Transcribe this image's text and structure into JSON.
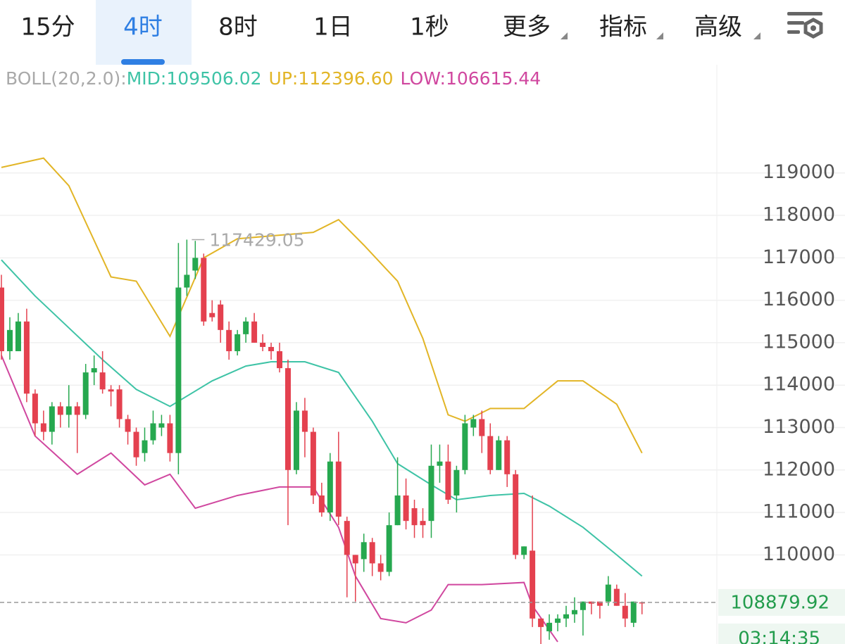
{
  "tabs": {
    "items": [
      "15分",
      "4时",
      "8时",
      "1日",
      "1秒",
      "更多",
      "指标",
      "高级"
    ],
    "active": 1
  },
  "indicator": {
    "label": "BOLL(20,2.0):",
    "mid": {
      "name": "MID:",
      "value": 109506.02
    },
    "up": {
      "name": "UP:",
      "value": 112396.6
    },
    "low": {
      "name": "LOW:",
      "value": 106615.44
    }
  },
  "chart_data": {
    "type": "candlestick",
    "open": [
      116300,
      114800,
      114800,
      115500,
      113800,
      113100,
      112900,
      113500,
      113300,
      113500,
      113300,
      114300,
      114300,
      113900,
      113900,
      113200,
      112900,
      112400,
      112700,
      113000,
      113100,
      112400,
      116300,
      116700,
      117000,
      115700,
      115900,
      115300,
      114800,
      115200,
      115500,
      115000,
      114900,
      114800,
      114400,
      112000,
      113400,
      112900,
      111400,
      111000,
      112200,
      110800,
      110000,
      109900,
      110300,
      109800,
      109600,
      110700,
      111400,
      111100,
      110800,
      110800,
      112100,
      112200,
      111400,
      112000,
      113000,
      113200,
      112800,
      112000,
      112700,
      111900,
      110000,
      110100,
      108500,
      108200,
      108400,
      108500,
      108600,
      108700,
      108900,
      108900,
      108900,
      109200,
      108800,
      108400,
      108880
    ],
    "high": [
      116600,
      115600,
      115700,
      115800,
      113900,
      113400,
      113600,
      113600,
      114000,
      113600,
      114500,
      114700,
      114800,
      114000,
      114000,
      113300,
      113000,
      113000,
      113400,
      113300,
      113300,
      117350,
      117429.05,
      117400,
      117100,
      116000,
      116000,
      115500,
      115300,
      115600,
      115700,
      115200,
      115000,
      115000,
      114600,
      113600,
      113700,
      113000,
      111700,
      112400,
      112900,
      110900,
      110000,
      110500,
      110400,
      110000,
      111000,
      112300,
      111800,
      111300,
      111100,
      112600,
      112600,
      112600,
      112100,
      113300,
      113300,
      113400,
      113100,
      112800,
      112800,
      112000,
      110200,
      111400,
      108500,
      108600,
      108600,
      108800,
      109000,
      108900,
      108900,
      108900,
      109500,
      109300,
      109100,
      108900,
      108900
    ],
    "low": [
      114600,
      114600,
      114800,
      113600,
      112800,
      112700,
      112600,
      113000,
      113000,
      112400,
      113200,
      114000,
      113800,
      113500,
      113000,
      112600,
      112100,
      112200,
      112600,
      112800,
      112200,
      111900,
      116100,
      116500,
      115400,
      115500,
      115000,
      114600,
      114700,
      115000,
      115000,
      114800,
      114600,
      114300,
      110700,
      111900,
      112300,
      111200,
      110900,
      110800,
      110700,
      109000,
      108900,
      109600,
      109500,
      109400,
      109500,
      110700,
      110600,
      110400,
      110400,
      110400,
      111700,
      111200,
      111000,
      111900,
      112800,
      112400,
      111900,
      112000,
      111600,
      109900,
      109900,
      108300,
      107900,
      108000,
      108200,
      108300,
      108400,
      108100,
      108600,
      108500,
      108800,
      108800,
      108300,
      108300,
      108600
    ],
    "close": [
      114800,
      115300,
      115500,
      113800,
      113100,
      112900,
      113500,
      113300,
      113500,
      113300,
      114300,
      114400,
      113900,
      113850,
      113200,
      112900,
      112300,
      112700,
      113100,
      113100,
      112400,
      116300,
      116600,
      117000,
      115500,
      115600,
      115300,
      114800,
      115200,
      115500,
      115000,
      114900,
      114800,
      114400,
      112000,
      113400,
      112900,
      111400,
      111000,
      112200,
      110900,
      110000,
      109800,
      110300,
      109800,
      109600,
      110700,
      111400,
      110800,
      110700,
      110700,
      112100,
      112200,
      111300,
      112000,
      113100,
      113200,
      112800,
      112000,
      112700,
      111900,
      110000,
      110200,
      108500,
      108300,
      108400,
      108500,
      108600,
      108700,
      108900,
      108850,
      108800,
      109300,
      108800,
      108500,
      108900,
      108879.92
    ],
    "up_color": "#26a84f",
    "down_color": "#e4414f",
    "series": [
      {
        "color": "#e2b526",
        "x": [
          0,
          5,
          8,
          13,
          16,
          20,
          24,
          28,
          37,
          40,
          43,
          47,
          50,
          53,
          55,
          58,
          62,
          66,
          69,
          73,
          76
        ],
        "values": [
          119130,
          119350,
          118700,
          116550,
          116450,
          115150,
          117000,
          117450,
          117600,
          117900,
          117300,
          116450,
          115100,
          113300,
          113150,
          113450,
          113450,
          114100,
          114100,
          113550,
          112400
        ]
      },
      {
        "color": "#3ec3a6",
        "x": [
          0,
          4,
          8,
          12,
          16,
          20,
          25,
          29,
          32,
          36,
          40,
          44,
          47,
          51,
          54,
          58,
          62,
          65,
          69,
          73,
          76
        ],
        "values": [
          116950,
          116100,
          115350,
          114600,
          113900,
          113500,
          114100,
          114450,
          114550,
          114550,
          114300,
          113150,
          112150,
          111650,
          111300,
          111400,
          111450,
          111150,
          110650,
          110000,
          109500
        ]
      },
      {
        "color": "#d0479f",
        "x": [
          0,
          4,
          9,
          13,
          17,
          20,
          23,
          28,
          33,
          37,
          40,
          42,
          45,
          48,
          51,
          53,
          57,
          62,
          63,
          66
        ],
        "values": [
          114700,
          112800,
          111900,
          112400,
          111650,
          111900,
          111100,
          111400,
          111600,
          111600,
          110650,
          109500,
          108500,
          108400,
          108700,
          109300,
          109300,
          109350,
          108800,
          107950
        ]
      }
    ],
    "ylim": [
      107900,
      121550
    ],
    "yticks": [
      110000,
      111000,
      112000,
      113000,
      114000,
      115000,
      116000,
      117000,
      118000,
      119000
    ],
    "grid": true,
    "countdown": "03:14:35"
  }
}
